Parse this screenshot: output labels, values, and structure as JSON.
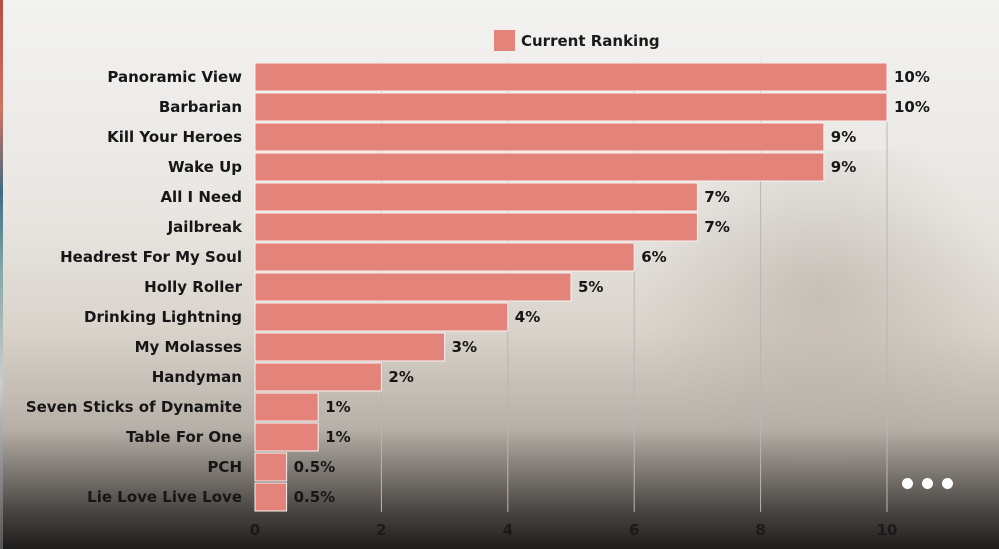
{
  "chart_data": {
    "type": "bar",
    "orientation": "horizontal",
    "categories": [
      "Panoramic View",
      "Barbarian",
      "Kill Your Heroes",
      "Wake Up",
      "All I Need",
      "Jailbreak",
      "Headrest For My Soul",
      "Holly Roller",
      "Drinking Lightning",
      "My Molasses",
      "Handyman",
      "Seven Sticks of Dynamite",
      "Table For One",
      "PCH",
      "Lie Love Live Love"
    ],
    "series": [
      {
        "name": "Current Ranking",
        "values": [
          10,
          10,
          9,
          9,
          7,
          7,
          6,
          5,
          4,
          3,
          2,
          1,
          1,
          0.5,
          0.5
        ],
        "labels": [
          "10%",
          "10%",
          "9%",
          "9%",
          "7%",
          "7%",
          "6%",
          "5%",
          "4%",
          "3%",
          "2%",
          "1%",
          "1%",
          "0.5%",
          "0.5%"
        ]
      }
    ],
    "xlim": [
      0,
      10
    ],
    "xticks": [
      0,
      2,
      4,
      6,
      8,
      10
    ],
    "grid": "vertical",
    "legend_position": "top-center",
    "bar_color": "#e4837a"
  },
  "legend": {
    "label": "Current Ranking"
  },
  "controls": {
    "more": "more-options"
  }
}
